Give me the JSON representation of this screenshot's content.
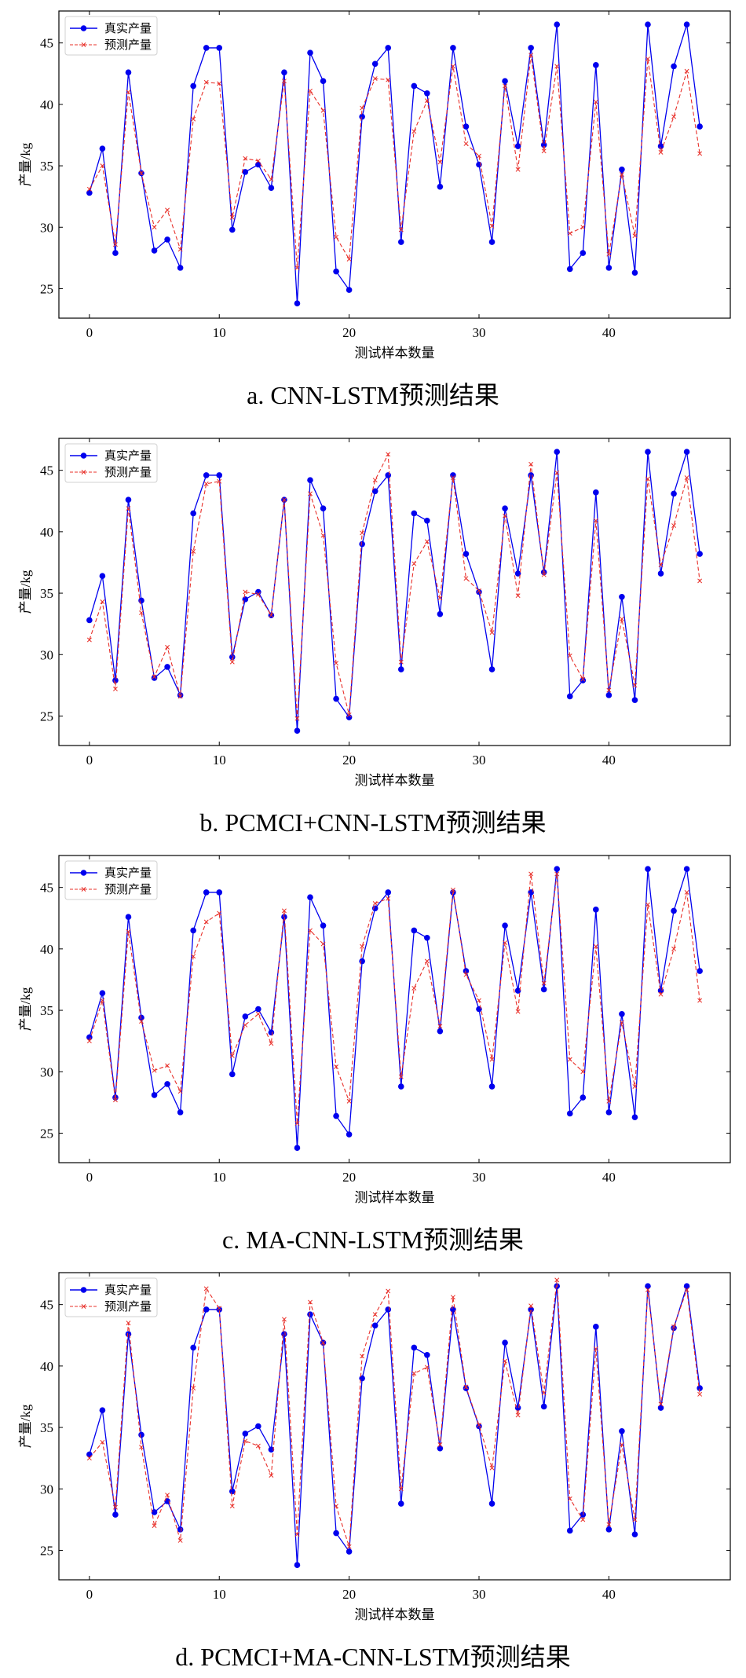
{
  "chart_data": [
    {
      "type": "line",
      "title": "a. CNN-LSTM预测结果",
      "xlabel": "测试样本数量",
      "ylabel": "产量/kg",
      "xlim": [
        -2.35,
        49.35
      ],
      "ylim": [
        22.6,
        47.6
      ],
      "xticks": [
        0,
        10,
        20,
        30,
        40
      ],
      "yticks": [
        25,
        30,
        35,
        40,
        45
      ],
      "legend": "top-left",
      "grid": false,
      "series": [
        {
          "name": "真实产量",
          "color": "#0000ee",
          "style": "solid-circle",
          "values": [
            32.8,
            36.4,
            27.9,
            42.6,
            34.4,
            28.1,
            29.0,
            26.7,
            41.5,
            44.6,
            44.6,
            29.8,
            34.5,
            35.1,
            33.2,
            42.6,
            23.8,
            44.2,
            41.9,
            26.4,
            24.9,
            39.0,
            43.3,
            44.6,
            28.8,
            41.5,
            40.9,
            33.3,
            44.6,
            38.2,
            35.1,
            28.8,
            41.9,
            36.6,
            44.6,
            36.7,
            46.5,
            26.6,
            27.9,
            43.2,
            26.7,
            34.7,
            26.3,
            46.5,
            36.6,
            43.1,
            46.5,
            38.2
          ]
        },
        {
          "name": "预测产量",
          "color": "#e8302a",
          "style": "dashed-x",
          "values": [
            33.1,
            35.0,
            28.6,
            41.0,
            34.4,
            30.0,
            31.4,
            28.2,
            38.8,
            41.8,
            41.7,
            30.8,
            35.6,
            35.4,
            33.9,
            41.9,
            26.7,
            41.1,
            39.5,
            29.2,
            27.4,
            39.7,
            42.1,
            42.0,
            29.8,
            37.8,
            40.3,
            35.3,
            43.1,
            36.8,
            35.8,
            30.1,
            41.5,
            34.7,
            44.0,
            36.2,
            43.1,
            29.5,
            30.0,
            40.2,
            27.8,
            34.3,
            29.3,
            43.7,
            36.1,
            39.0,
            42.7,
            36.0
          ]
        }
      ]
    },
    {
      "type": "line",
      "title": "b. PCMCI+CNN-LSTM预测结果",
      "xlabel": "测试样本数量",
      "ylabel": "产量/kg",
      "xlim": [
        -2.35,
        49.35
      ],
      "ylim": [
        22.6,
        47.6
      ],
      "xticks": [
        0,
        10,
        20,
        30,
        40
      ],
      "yticks": [
        25,
        30,
        35,
        40,
        45
      ],
      "legend": "top-left",
      "grid": false,
      "series": [
        {
          "name": "真实产量",
          "color": "#0000ee",
          "style": "solid-circle",
          "values": [
            32.8,
            36.4,
            27.9,
            42.6,
            34.4,
            28.1,
            29.0,
            26.7,
            41.5,
            44.6,
            44.6,
            29.8,
            34.5,
            35.1,
            33.2,
            42.6,
            23.8,
            44.2,
            41.9,
            26.4,
            24.9,
            39.0,
            43.3,
            44.6,
            28.8,
            41.5,
            40.9,
            33.3,
            44.6,
            38.2,
            35.1,
            28.8,
            41.9,
            36.6,
            44.6,
            36.7,
            46.5,
            26.6,
            27.9,
            43.2,
            26.7,
            34.7,
            26.3,
            46.5,
            36.6,
            43.1,
            46.5,
            38.2
          ]
        },
        {
          "name": "预测产量",
          "color": "#e8302a",
          "style": "dashed-x",
          "values": [
            31.2,
            34.3,
            27.2,
            41.9,
            33.4,
            28.2,
            30.6,
            26.6,
            38.4,
            43.9,
            44.1,
            29.4,
            35.1,
            34.9,
            33.2,
            42.6,
            24.8,
            43.1,
            39.7,
            29.3,
            25.1,
            39.9,
            44.2,
            46.3,
            29.4,
            37.4,
            39.2,
            34.6,
            44.4,
            36.2,
            35.2,
            31.8,
            41.3,
            34.8,
            45.5,
            36.5,
            44.8,
            29.9,
            28.0,
            40.9,
            27.1,
            32.9,
            27.5,
            44.3,
            37.3,
            40.5,
            44.4,
            36.0
          ]
        }
      ]
    },
    {
      "type": "line",
      "title": "c. MA-CNN-LSTM预测结果",
      "xlabel": "测试样本数量",
      "ylabel": "产量/kg",
      "xlim": [
        -2.35,
        49.35
      ],
      "ylim": [
        22.6,
        47.6
      ],
      "xticks": [
        0,
        10,
        20,
        30,
        40
      ],
      "yticks": [
        25,
        30,
        35,
        40,
        45
      ],
      "legend": "top-left",
      "grid": false,
      "series": [
        {
          "name": "真实产量",
          "color": "#0000ee",
          "style": "solid-circle",
          "values": [
            32.8,
            36.4,
            27.9,
            42.6,
            34.4,
            28.1,
            29.0,
            26.7,
            41.5,
            44.6,
            44.6,
            29.8,
            34.5,
            35.1,
            33.2,
            42.6,
            23.8,
            44.2,
            41.9,
            26.4,
            24.9,
            39.0,
            43.3,
            44.6,
            28.8,
            41.5,
            40.9,
            33.3,
            44.6,
            38.2,
            35.1,
            28.8,
            41.9,
            36.6,
            44.6,
            36.7,
            46.5,
            26.6,
            27.9,
            43.2,
            26.7,
            34.7,
            26.3,
            46.5,
            36.6,
            43.1,
            46.5,
            38.2
          ]
        },
        {
          "name": "预测产量",
          "color": "#e8302a",
          "style": "dashed-x",
          "values": [
            32.5,
            35.8,
            27.7,
            41.4,
            34.1,
            30.1,
            30.5,
            28.4,
            39.4,
            42.2,
            42.9,
            31.3,
            33.8,
            34.7,
            32.3,
            43.1,
            25.8,
            41.5,
            40.4,
            30.4,
            27.6,
            40.2,
            43.7,
            44.1,
            29.6,
            36.8,
            39.0,
            33.7,
            44.8,
            37.9,
            35.8,
            31.0,
            40.5,
            34.9,
            46.1,
            37.2,
            46.1,
            31.0,
            30.0,
            40.2,
            27.6,
            34.0,
            28.8,
            43.6,
            36.3,
            40.0,
            44.6,
            35.8
          ]
        }
      ]
    },
    {
      "type": "line",
      "title": "d. PCMCI+MA-CNN-LSTM预测结果",
      "xlabel": "测试样本数量",
      "ylabel": "产量/kg",
      "xlim": [
        -2.35,
        49.35
      ],
      "ylim": [
        22.6,
        47.6
      ],
      "xticks": [
        0,
        10,
        20,
        30,
        40
      ],
      "yticks": [
        25,
        30,
        35,
        40,
        45
      ],
      "legend": "top-left",
      "grid": false,
      "series": [
        {
          "name": "真实产量",
          "color": "#0000ee",
          "style": "solid-circle",
          "values": [
            32.8,
            36.4,
            27.9,
            42.6,
            34.4,
            28.1,
            29.0,
            26.7,
            41.5,
            44.6,
            44.6,
            29.8,
            34.5,
            35.1,
            33.2,
            42.6,
            23.8,
            44.2,
            41.9,
            26.4,
            24.9,
            39.0,
            43.3,
            44.6,
            28.8,
            41.5,
            40.9,
            33.3,
            44.6,
            38.2,
            35.1,
            28.8,
            41.9,
            36.6,
            44.6,
            36.7,
            46.5,
            26.6,
            27.9,
            43.2,
            26.7,
            34.7,
            26.3,
            46.5,
            36.6,
            43.1,
            46.5,
            38.2
          ]
        },
        {
          "name": "预测产量",
          "color": "#e8302a",
          "style": "dashed-x",
          "values": [
            32.5,
            33.8,
            28.5,
            43.5,
            33.4,
            27.0,
            29.5,
            25.8,
            38.2,
            46.3,
            44.7,
            28.6,
            33.9,
            33.5,
            31.1,
            43.8,
            26.3,
            45.2,
            41.9,
            28.6,
            25.3,
            40.8,
            44.2,
            46.1,
            30.0,
            39.4,
            39.9,
            33.6,
            45.6,
            38.3,
            35.2,
            31.7,
            40.4,
            36.0,
            44.9,
            37.8,
            47.0,
            29.2,
            27.5,
            41.4,
            27.1,
            33.6,
            27.5,
            46.2,
            36.9,
            43.2,
            46.2,
            37.7
          ]
        }
      ]
    }
  ]
}
